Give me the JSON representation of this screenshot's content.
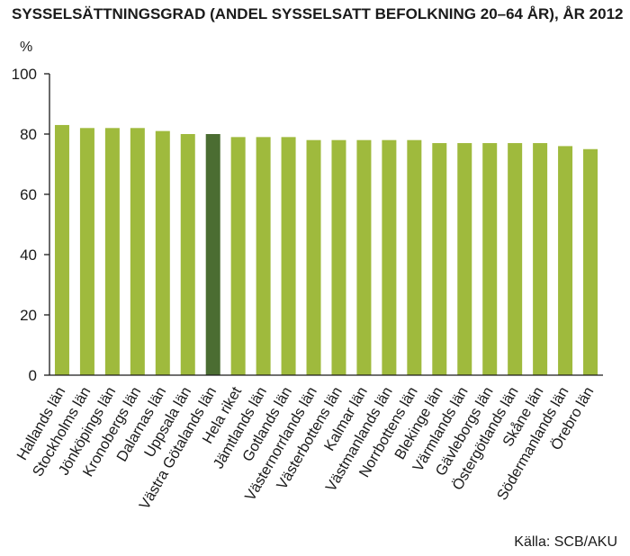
{
  "chart_data": {
    "type": "bar",
    "title": "SYSSELSÄTTNINGSGRAD (ANDEL SYSSELSATT BEFOLKNING 20–64 ÅR), ÅR 2012",
    "ylabel": "%",
    "xlabel": "",
    "ylim": [
      0,
      100
    ],
    "yticks": [
      0,
      20,
      40,
      60,
      80,
      100
    ],
    "grid": false,
    "legend": "none",
    "categories": [
      "Hallands län",
      "Stockholms län",
      "Jönköpings län",
      "Kronobergs län",
      "Dalarnas län",
      "Uppsala län",
      "Västra Götalands län",
      "Hela riket",
      "Jämtlands län",
      "Gotlands län",
      "Västernorrlands län",
      "Västerbottens län",
      "Kalmar län",
      "Västmanlands län",
      "Norrbottens län",
      "Blekinge län",
      "Värmlands län",
      "Gävleborgs län",
      "Östergötlands län",
      "Skåne län",
      "Södermanlands län",
      "Örebro län"
    ],
    "values": [
      83,
      82,
      82,
      82,
      81,
      80,
      80,
      79,
      79,
      79,
      78,
      78,
      78,
      78,
      78,
      77,
      77,
      77,
      77,
      77,
      76,
      75
    ],
    "highlight_index": 6,
    "colors": {
      "bar": "#9fba3d",
      "highlight": "#4b6d32",
      "axis": "#1a1a1a"
    },
    "source": "Källa: SCB/AKU"
  }
}
